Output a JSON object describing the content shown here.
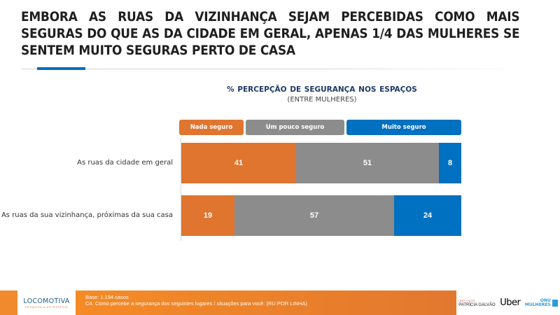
{
  "slide": {
    "title": "EMBORA AS RUAS DA VIZINHANÇA SEJAM PERCEBIDAS COMO MAIS SEGURAS DO QUE AS DA CIDADE EM GERAL, APENAS 1/4 DAS MULHERES SE SENTEM MUITO SEGURAS PERTO DE CASA",
    "accent_color": "#0070C0"
  },
  "chart_data": {
    "type": "bar",
    "orientation": "horizontal",
    "stacked": true,
    "title": "% PERCEPÇÃO DE SEGURANÇA NOS ESPAÇOS",
    "subtitle": "(ENTRE MULHERES)",
    "xlabel": "",
    "ylabel": "",
    "xlim": [
      0,
      100
    ],
    "grid": false,
    "legend_position": "top",
    "categories": [
      "As ruas da cidade em geral",
      "As ruas da sua vizinhança, próximas da sua casa"
    ],
    "series": [
      {
        "name": "Nada seguro",
        "color": "#E07530",
        "values": [
          41,
          19
        ]
      },
      {
        "name": "Um pouco seguro",
        "color": "#8C8C8C",
        "values": [
          51,
          57
        ]
      },
      {
        "name": "Muito seguro",
        "color": "#0070C0",
        "values": [
          8,
          24
        ]
      }
    ]
  },
  "footer": {
    "base": "Base: 1.194 casos",
    "question": "C4. Como percebe a segurança dos seguintes lugares / situações para você: (RU POR LINHA)",
    "logo": {
      "name": "LOCOMOTIVA",
      "tagline": "PESQUISA & ESTRATÉGIA"
    },
    "partners": {
      "ipg_small": "INSTITUTO",
      "ipg_name": "PATRÍCIA GALVÃO",
      "uber": "Uber",
      "onu_top": "ONU",
      "onu_bottom": "MULHERES"
    }
  }
}
